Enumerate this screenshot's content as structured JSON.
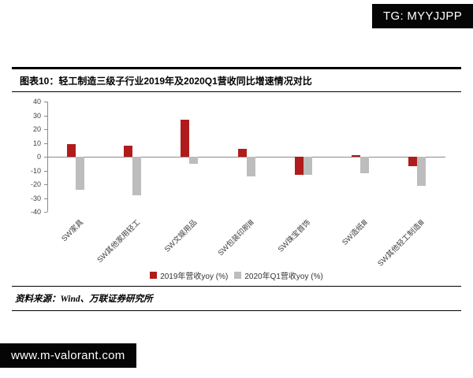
{
  "watermarks": {
    "top_right": "TG: MYYJJPP",
    "bottom_left": "www.m-valorant.com"
  },
  "figure": {
    "label": "图表10：",
    "title": "轻工制造三级子行业2019年及2020Q1营收同比增速情况对比",
    "source": "资料来源：Wind、万联证券研究所"
  },
  "chart_data": {
    "type": "bar",
    "categories": [
      "SW家具",
      "SW其他家用轻工",
      "SW文娱用品",
      "SW包装印刷Ⅲ",
      "SW珠宝首饰",
      "SW造纸Ⅲ",
      "SW其他轻工制造Ⅲ"
    ],
    "series": [
      {
        "name": "2019年营收yoy (%)",
        "color": "#b01c1c",
        "values": [
          9,
          8,
          27,
          6,
          -13,
          1,
          -7
        ]
      },
      {
        "name": "2020年Q1营收yoy (%)",
        "color": "#bdbdbd",
        "values": [
          -24,
          -28,
          -5,
          -14,
          -13,
          -12,
          -21
        ]
      }
    ],
    "ylim": [
      -40,
      40
    ],
    "ytick_step": 10,
    "grid": false,
    "legend_position": "bottom"
  }
}
